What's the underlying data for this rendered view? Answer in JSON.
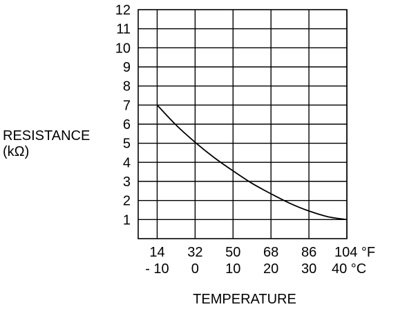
{
  "chart_data": {
    "type": "line",
    "ylabel_line1": "RESISTANCE",
    "ylabel_line2": "(kΩ)",
    "xlabel": "TEMPERATURE",
    "ylim": [
      0,
      12
    ],
    "yticks": [
      "1",
      "2",
      "3",
      "4",
      "5",
      "6",
      "7",
      "8",
      "9",
      "10",
      "11",
      "12"
    ],
    "x_celsius_range": [
      -15,
      40
    ],
    "xticks_f": [
      "14",
      "32",
      "50",
      "68",
      "86",
      "104 °F"
    ],
    "xticks_c": [
      "- 10",
      "0",
      "10",
      "20",
      "30",
      "40 °C"
    ],
    "xtick_values_c": [
      -10,
      0,
      10,
      20,
      30,
      40
    ],
    "grid": true,
    "series": [
      {
        "x": [
          -10,
          -5,
          0,
          5,
          10,
          15,
          20,
          25,
          30,
          35,
          40
        ],
        "values": [
          7.0,
          5.95,
          5.05,
          4.25,
          3.55,
          2.9,
          2.35,
          1.85,
          1.45,
          1.15,
          1.0
        ]
      }
    ]
  }
}
